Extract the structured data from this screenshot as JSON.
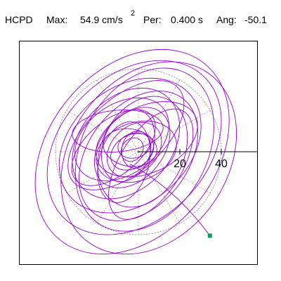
{
  "header": {
    "component": "HCPD",
    "max_label": "Max:",
    "max_value": "54.9 cm/s",
    "max_unit_exponent": "2",
    "period_label": "Per:",
    "period_value": "0.400 s",
    "angle_label": "Ang:",
    "angle_value": "-50.1"
  },
  "chart_data": {
    "type": "scatter",
    "description_kind": "polar-orbit",
    "title": "HCPD",
    "max_magnitude": 54.9,
    "max_magnitude_unit": "cm/s2",
    "period_s": 0.4,
    "angle_deg": -50.1,
    "axis_ticks": [
      {
        "value": 20,
        "label": "20"
      },
      {
        "value": 40,
        "label": "40"
      }
    ],
    "axis_range": [
      -55,
      55
    ],
    "reference_circle_radius": 40,
    "grid": "dotted polar",
    "colors": {
      "trace": "#9400d3",
      "end_marker": "#00a060",
      "axis": "#000000",
      "grid": "#808080"
    },
    "end_point": {
      "x": 34.5,
      "y": -40.5
    },
    "trace_loops": [
      {
        "cx": -3,
        "cy": 0,
        "rx": 55,
        "ry": 40,
        "rot": -50
      },
      {
        "cx": 5,
        "cy": -3,
        "rx": 50,
        "ry": 38,
        "rot": -55
      },
      {
        "cx": -2,
        "cy": 2,
        "rx": 48,
        "ry": 35,
        "rot": -45
      },
      {
        "cx": 3,
        "cy": 1,
        "rx": 42,
        "ry": 30,
        "rot": -60
      },
      {
        "cx": -4,
        "cy": 3,
        "rx": 38,
        "ry": 28,
        "rot": -40
      },
      {
        "cx": 0,
        "cy": -2,
        "rx": 35,
        "ry": 24,
        "rot": -52
      },
      {
        "cx": -6,
        "cy": 4,
        "rx": 30,
        "ry": 22,
        "rot": -48
      },
      {
        "cx": 2,
        "cy": 0,
        "rx": 28,
        "ry": 20,
        "rot": -65
      },
      {
        "cx": -8,
        "cy": 6,
        "rx": 25,
        "ry": 17,
        "rot": -35
      },
      {
        "cx": -3,
        "cy": 2,
        "rx": 22,
        "ry": 15,
        "rot": -50
      },
      {
        "cx": -1,
        "cy": 0,
        "rx": 20,
        "ry": 14,
        "rot": -20
      },
      {
        "cx": -5,
        "cy": 3,
        "rx": 18,
        "ry": 12,
        "rot": -70
      },
      {
        "cx": -2,
        "cy": 1,
        "rx": 15,
        "ry": 11,
        "rot": -45
      },
      {
        "cx": -4,
        "cy": 2,
        "rx": 13,
        "ry": 9,
        "rot": 10
      },
      {
        "cx": -3,
        "cy": 0,
        "rx": 11,
        "ry": 8,
        "rot": -30
      },
      {
        "cx": -1,
        "cy": 1,
        "rx": 9,
        "ry": 7,
        "rot": -80
      },
      {
        "cx": -2,
        "cy": 3,
        "rx": 8,
        "ry": 6,
        "rot": -15
      },
      {
        "cx": -3,
        "cy": 1,
        "rx": 6,
        "ry": 5,
        "rot": -55
      },
      {
        "cx": -10,
        "cy": 10,
        "rx": 22,
        "ry": 10,
        "rot": -5
      },
      {
        "cx": -7,
        "cy": -5,
        "rx": 20,
        "ry": 12,
        "rot": -75
      },
      {
        "cx": 4,
        "cy": 6,
        "rx": 26,
        "ry": 16,
        "rot": -25
      },
      {
        "cx": -12,
        "cy": 2,
        "rx": 24,
        "ry": 13,
        "rot": -40
      },
      {
        "cx": 6,
        "cy": -6,
        "rx": 30,
        "ry": 15,
        "rot": -58
      },
      {
        "cx": -6,
        "cy": 8,
        "rx": 34,
        "ry": 18,
        "rot": -42
      }
    ]
  }
}
